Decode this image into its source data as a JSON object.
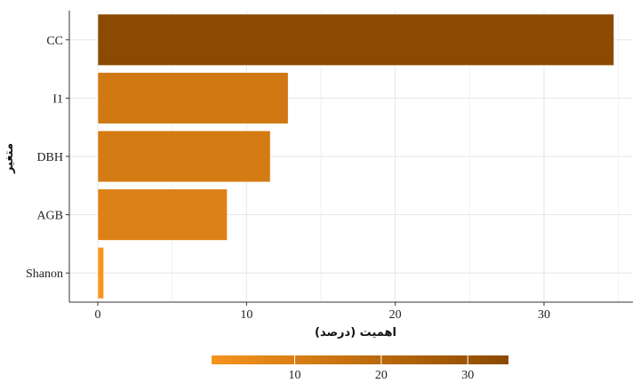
{
  "chart_data": {
    "type": "bar",
    "orientation": "horizontal",
    "categories": [
      "CC",
      "I1",
      "DBH",
      "AGB",
      "Shanon"
    ],
    "values": [
      34.7,
      12.8,
      11.6,
      8.7,
      0.4
    ],
    "xlabel": "اهمیت (درصد)",
    "ylabel": "متغیر",
    "xlim": [
      0,
      35
    ],
    "xticks": [
      0,
      10,
      20,
      30
    ],
    "grid": true,
    "legend": {
      "type": "colorbar",
      "placement": "bottom",
      "ticks": [
        10,
        20,
        30
      ],
      "range": [
        0.4,
        34.7
      ],
      "color_low": "#f7931e",
      "color_high": "#8b4a00"
    }
  }
}
